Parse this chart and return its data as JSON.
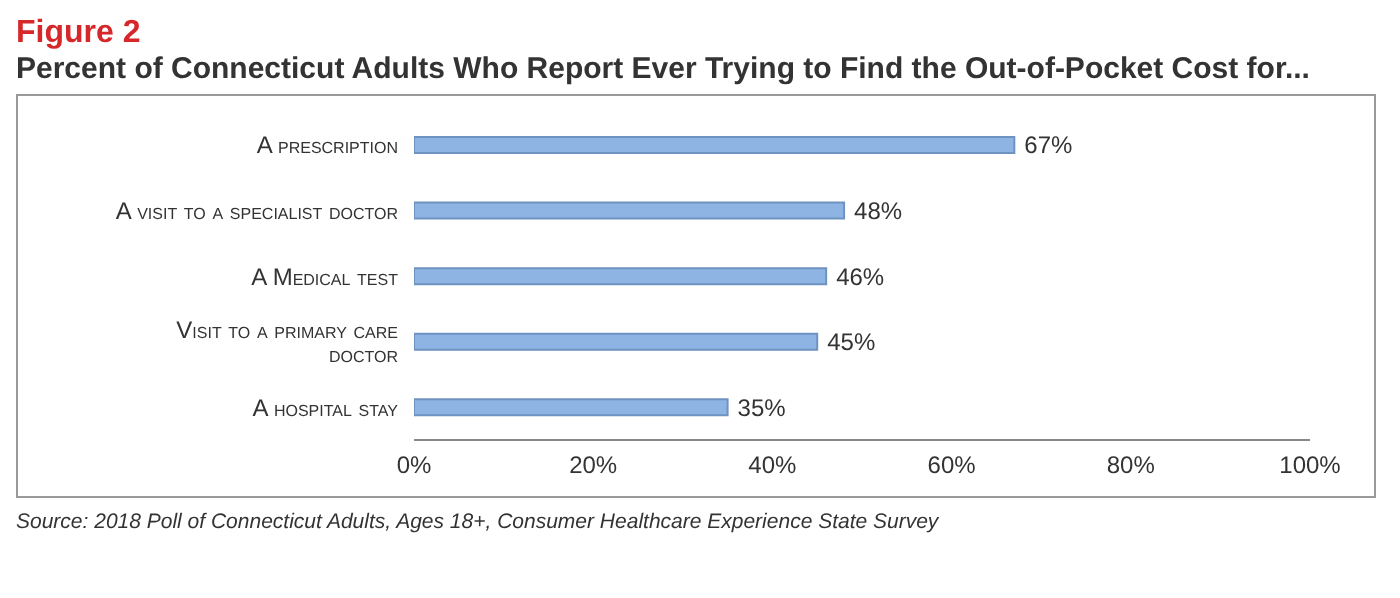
{
  "chart_data": {
    "type": "bar",
    "orientation": "horizontal",
    "title": "Figure 2",
    "subtitle": "Percent of Connecticut Adults Who Report Ever Trying to Find the Out-of-Pocket Cost for...",
    "categories": [
      "A prescription",
      "A visit to a specialist doctor",
      "A Medical test",
      "Visit to a primary care doctor",
      "A hospital stay"
    ],
    "values": [
      67,
      48,
      46,
      45,
      35
    ],
    "color": "#8db4e2",
    "value_labels": [
      "67%",
      "48%",
      "46%",
      "45%",
      "35%"
    ],
    "xlim": [
      0,
      100
    ],
    "xticks": [
      {
        "value": 0,
        "label": "0%"
      },
      {
        "value": 20,
        "label": "20%"
      },
      {
        "value": 40,
        "label": "40%"
      },
      {
        "value": 60,
        "label": "60%"
      },
      {
        "value": 80,
        "label": "80%"
      },
      {
        "value": 100,
        "label": "100%"
      }
    ],
    "grid": false,
    "legend": false,
    "annotations": [
      "Source: 2018 Poll of Connecticut Adults, Ages 18+, Consumer Healthcare Experience State Survey"
    ]
  }
}
